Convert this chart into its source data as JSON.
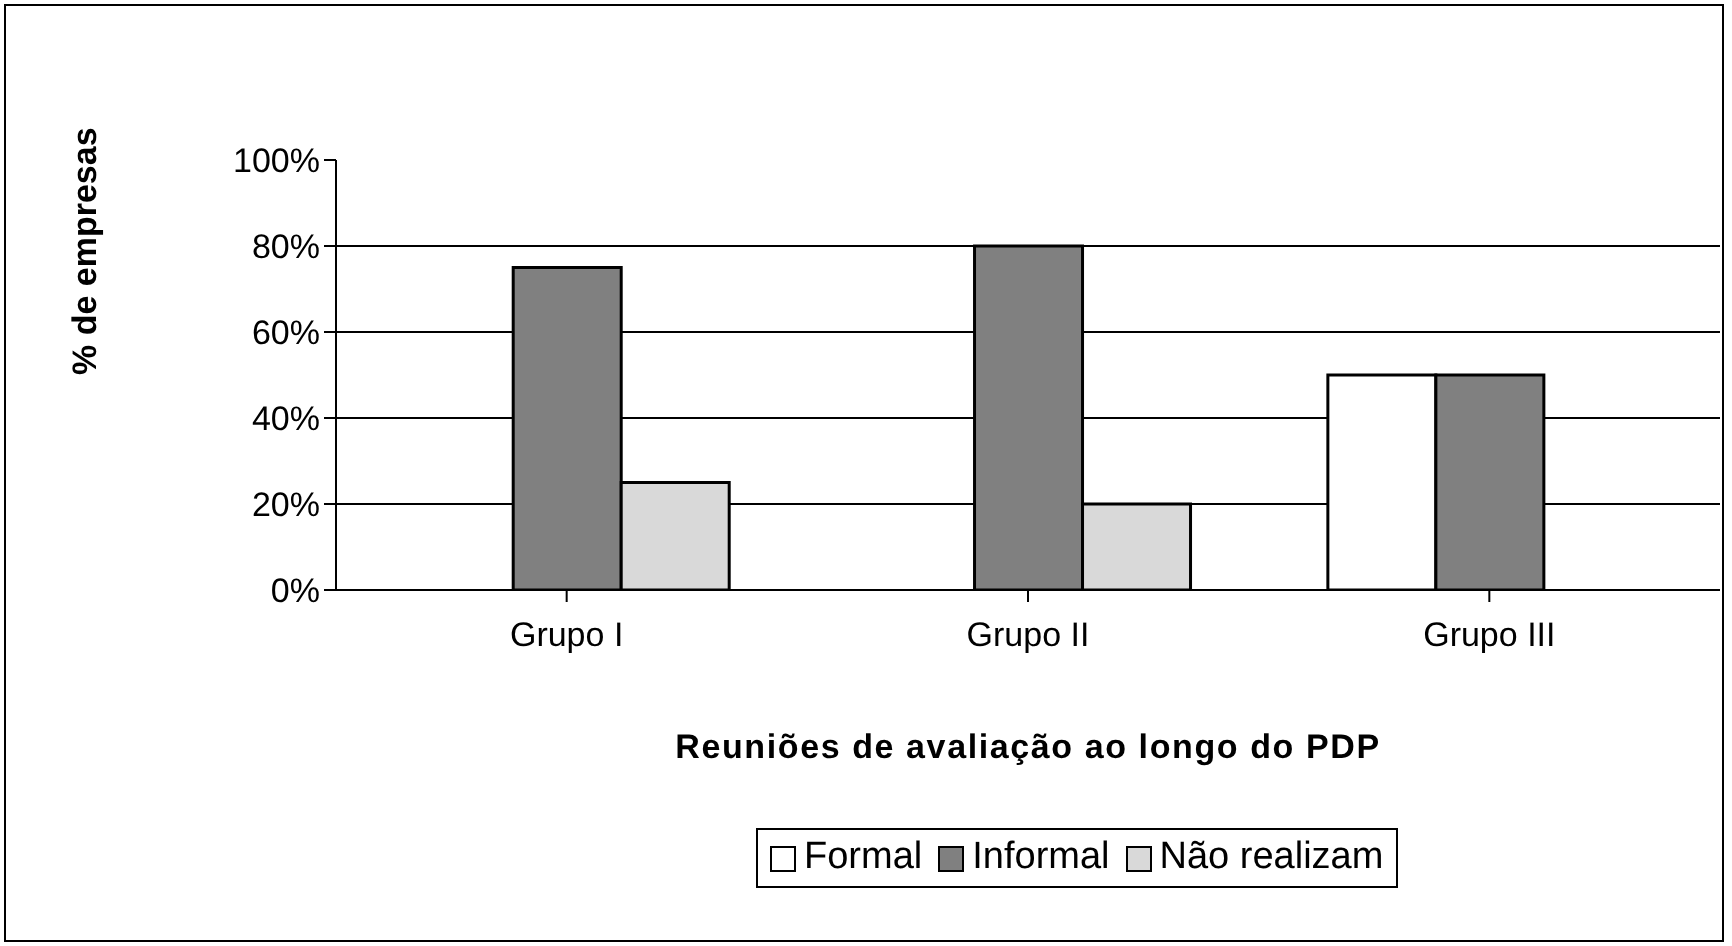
{
  "chart_data": {
    "type": "bar",
    "xlabel": "Reuniões de avaliação ao longo do PDP",
    "ylabel": "% de empresas",
    "categories": [
      "Grupo I",
      "Grupo II",
      "Grupo III"
    ],
    "series": [
      {
        "name": "Formal",
        "color": "#ffffff",
        "values": [
          0,
          0,
          50
        ]
      },
      {
        "name": "Informal",
        "color": "#808080",
        "values": [
          75,
          80,
          50
        ]
      },
      {
        "name": "Não realizam",
        "color": "#d9d9d9",
        "values": [
          25,
          20,
          0
        ]
      }
    ],
    "ylim": [
      0,
      100
    ],
    "yticks": [
      {
        "value": 0,
        "label": "0%"
      },
      {
        "value": 20,
        "label": "20%"
      },
      {
        "value": 40,
        "label": "40%"
      },
      {
        "value": 60,
        "label": "60%"
      },
      {
        "value": 80,
        "label": "80%"
      },
      {
        "value": 100,
        "label": "100%"
      }
    ],
    "grid": "y",
    "legend": "bottom"
  }
}
